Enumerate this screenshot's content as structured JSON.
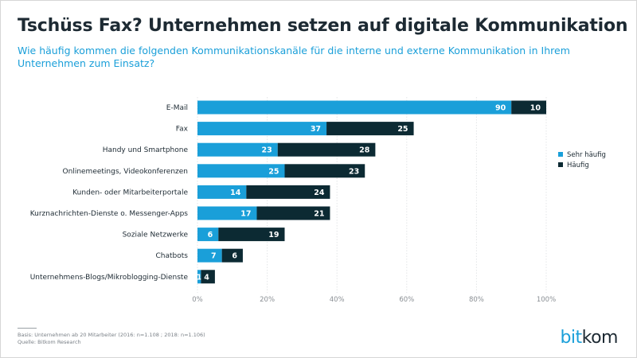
{
  "title": "Tschüss Fax? Unternehmen setzen auf digitale Kommunikation",
  "subtitle": "Wie häufig kommen die folgenden Kommunikationskanäle für die interne und externe Kommunikation in Ihrem Unternehmen zum Einsatz?",
  "footnote": {
    "basis": "Basis: Unternehmen ab 20 Mitarbeiter (2016: n=1.108 ; 2018: n=1.106)",
    "source": "Quelle: Bitkom Research"
  },
  "logo": {
    "part1": "bit",
    "part2": "kom"
  },
  "colors": {
    "sehr_haeufig": "#1a9fd9",
    "haeufig": "#0c2a33"
  },
  "chart_data": {
    "type": "bar",
    "orientation": "horizontal",
    "stacked": true,
    "categories": [
      "E-Mail",
      "Fax",
      "Handy und Smartphone",
      "Onlinemeetings, Videokonferenzen",
      "Kunden- oder Mitarbeiterportale",
      "Kurznachrichten-Dienste o. Messenger-Apps",
      "Soziale Netzwerke",
      "Chatbots",
      "Unternehmens-Blogs/Mikroblogging-Dienste"
    ],
    "series": [
      {
        "name": "Sehr häufig",
        "color": "#1a9fd9",
        "values": [
          90,
          37,
          23,
          25,
          14,
          17,
          6,
          7,
          1
        ]
      },
      {
        "name": "Häufig",
        "color": "#0c2a33",
        "values": [
          10,
          25,
          28,
          23,
          24,
          21,
          19,
          6,
          4
        ]
      }
    ],
    "xlim": [
      0,
      100
    ],
    "xticks": [
      "0%",
      "20%",
      "40%",
      "60%",
      "80%",
      "100%"
    ],
    "legend_position": "right"
  }
}
